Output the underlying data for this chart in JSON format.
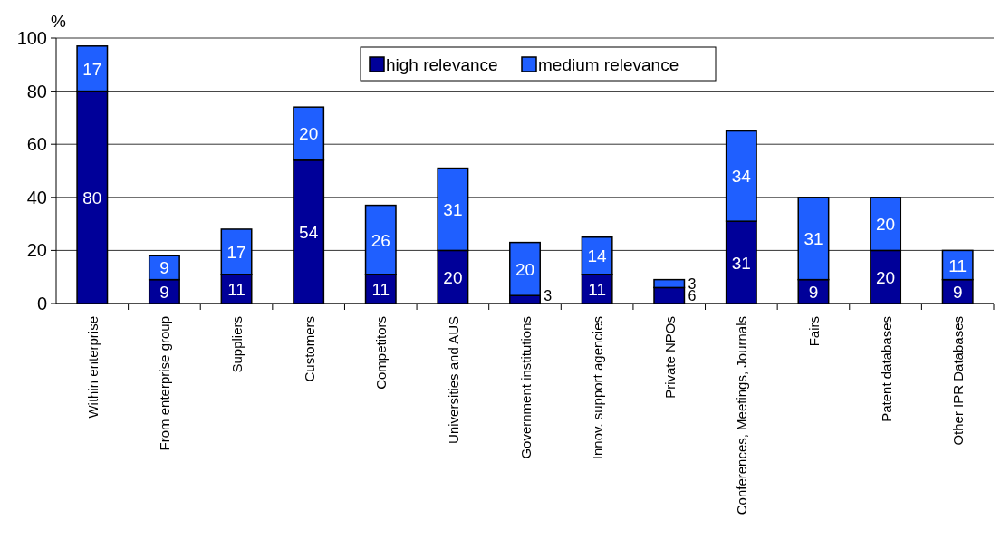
{
  "chart_data": {
    "type": "bar",
    "stacked": true,
    "ylabel": "%",
    "categories": [
      "Within enterprise",
      "From enterprise group",
      "Suppliers",
      "Customers",
      "Competitors",
      "Universities and AUS",
      "Government institutions",
      "Innov. support agencies",
      "Private NPOs",
      "Conferences, Meetings, Journals",
      "Fairs",
      "Patent databases",
      "Other IPR Databases"
    ],
    "series": [
      {
        "name": "high relevance",
        "color": "#000099",
        "values": [
          80,
          9,
          11,
          54,
          11,
          20,
          3,
          11,
          6,
          31,
          9,
          20,
          9
        ]
      },
      {
        "name": "medium relevance",
        "color": "#1f5fff",
        "values": [
          17,
          9,
          17,
          20,
          26,
          31,
          20,
          14,
          3,
          34,
          31,
          20,
          11
        ]
      }
    ],
    "ylim": [
      0,
      100
    ],
    "yticks": [
      0,
      20,
      40,
      60,
      80,
      100
    ],
    "grid": "y",
    "legend": "top",
    "data_labels": true
  }
}
